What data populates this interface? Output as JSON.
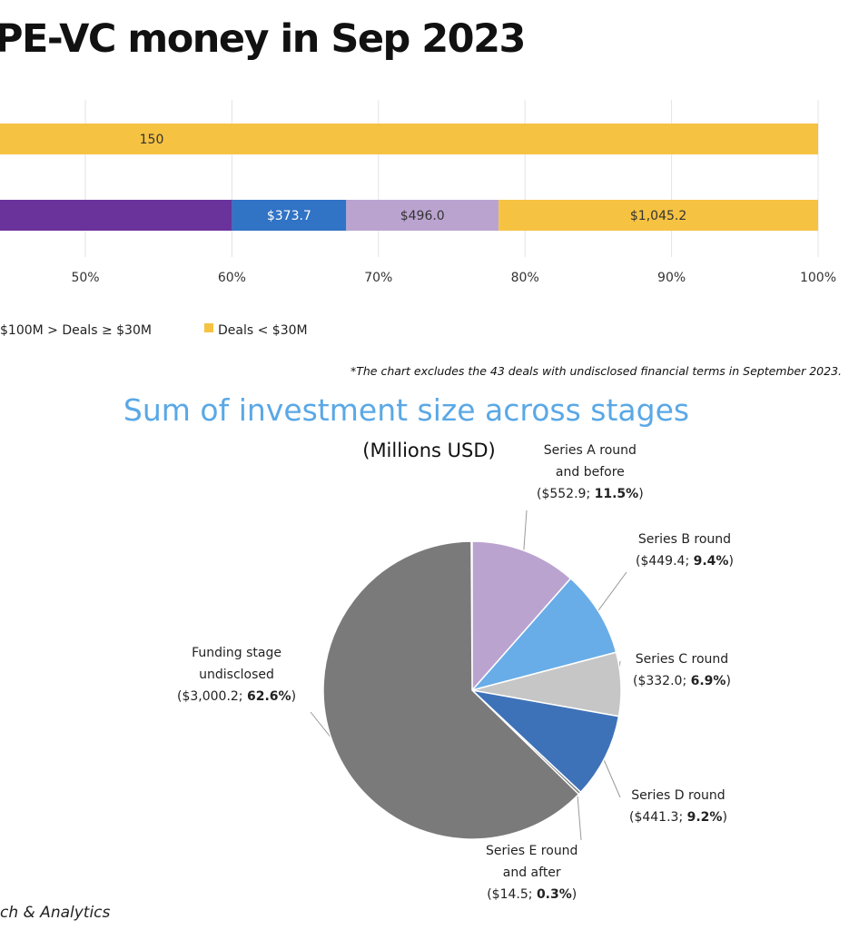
{
  "title": "PE-VC money in Sep 2023",
  "source": "ch & Analytics",
  "footnote": "*The chart excludes the 43 deals with undisclosed financial terms in September 2023.",
  "colors": {
    "purple": "#6a339b",
    "blue": "#3173c5",
    "lavender": "#bba3d0",
    "yellow": "#f5c242",
    "pie_lavender": "#bba3d0",
    "pie_lightblue": "#68ade7",
    "pie_gray_light": "#c6c6c6",
    "pie_blue": "#3e72b8",
    "pie_gray_dark": "#7a7a7a"
  },
  "chart_data": [
    {
      "type": "bar",
      "orientation": "horizontal",
      "stacked": true,
      "percent_scale": true,
      "xlim": [
        42,
        100
      ],
      "x_ticks": [
        "50%",
        "60%",
        "70%",
        "80%",
        "90%",
        "100%"
      ],
      "x_tick_values": [
        50,
        60,
        70,
        80,
        90,
        100
      ],
      "grid": true,
      "bars": [
        {
          "segments": [
            {
              "start": 42,
              "end": 100,
              "color": "yellow",
              "label": "150"
            }
          ]
        },
        {
          "segments": [
            {
              "start": 42,
              "end": 60.0,
              "color": "purple",
              "label": ""
            },
            {
              "start": 60.0,
              "end": 67.8,
              "color": "blue",
              "label": "$373.7"
            },
            {
              "start": 67.8,
              "end": 78.2,
              "color": "lavender",
              "label": "$496.0"
            },
            {
              "start": 78.2,
              "end": 100,
              "color": "yellow",
              "label": "$1,045.2"
            }
          ]
        }
      ],
      "legend": [
        {
          "label": "$100M > Deals ≥ $30M",
          "color": "lavender",
          "marker": false
        },
        {
          "label": "Deals < $30M",
          "color": "yellow",
          "marker": true
        }
      ]
    },
    {
      "type": "pie",
      "title": "Sum of investment size across stages",
      "subtitle": "(Millions USD)",
      "start_angle_deg": 0,
      "direction": "clockwise",
      "slices": [
        {
          "name_lines": [
            "Series A round",
            "and before"
          ],
          "value": "$552.9",
          "percent": 11.5,
          "percent_label": "11.5%",
          "color": "pie_lavender"
        },
        {
          "name_lines": [
            "Series B round"
          ],
          "value": "$449.4",
          "percent": 9.4,
          "percent_label": "9.4%",
          "color": "pie_lightblue"
        },
        {
          "name_lines": [
            "Series C round"
          ],
          "value": "$332.0",
          "percent": 6.9,
          "percent_label": "6.9%",
          "color": "pie_gray_light"
        },
        {
          "name_lines": [
            "Series D round"
          ],
          "value": "$441.3",
          "percent": 9.2,
          "percent_label": "9.2%",
          "color": "pie_blue"
        },
        {
          "name_lines": [
            "Series E round",
            "and after"
          ],
          "value": "$14.5",
          "percent": 0.3,
          "percent_label": "0.3%",
          "color": "pie_gray_dark"
        },
        {
          "name_lines": [
            "Funding stage",
            "undisclosed"
          ],
          "value": "$3,000.2",
          "percent": 62.6,
          "percent_label": "62.6%",
          "color": "pie_gray_dark"
        }
      ]
    }
  ]
}
